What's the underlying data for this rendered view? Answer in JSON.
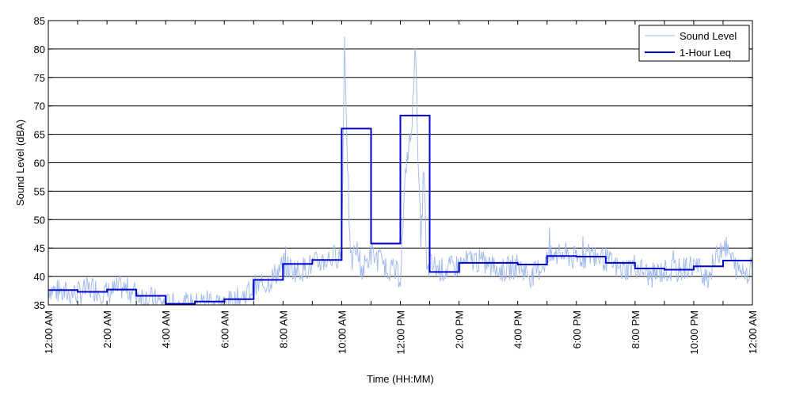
{
  "chart_data": {
    "type": "line",
    "title": "",
    "xlabel": "Time (HH:MM)",
    "ylabel": "Sound Level (dBA)",
    "ylim": [
      35,
      85
    ],
    "xlim": [
      0,
      24
    ],
    "y_ticks": [
      35,
      40,
      45,
      50,
      55,
      60,
      65,
      70,
      75,
      80,
      85
    ],
    "x_ticks": [
      0,
      2,
      4,
      6,
      8,
      10,
      12,
      14,
      16,
      18,
      20,
      22,
      24
    ],
    "x_tick_labels": [
      "12:00 AM",
      "2:00 AM",
      "4:00 AM",
      "6:00 AM",
      "8:00 AM",
      "10:00 AM",
      "12:00 PM",
      "2:00 PM",
      "4:00 PM",
      "6:00 PM",
      "8:00 PM",
      "10:00 PM",
      "12:00 AM"
    ],
    "grid": "horizontal",
    "legend_position": "top-right",
    "colors": {
      "sound_level": "#9db8ee",
      "leq": "#0000cc"
    },
    "series": [
      {
        "name": "Sound Level",
        "x_hours": [
          0,
          0.5,
          1,
          1.5,
          2,
          2.5,
          3,
          3.5,
          4,
          4.5,
          5,
          5.5,
          6,
          6.5,
          7,
          7.5,
          8,
          8.5,
          9,
          9.5,
          10,
          10.1,
          10.2,
          10.3,
          10.5,
          10.7,
          11,
          11.5,
          12,
          12.2,
          12.4,
          12.5,
          12.6,
          12.7,
          12.8,
          12.9,
          13,
          13.5,
          14,
          14.5,
          15,
          15.5,
          16,
          16.5,
          17,
          17.5,
          18,
          18.5,
          19,
          19.5,
          20,
          20.5,
          21,
          21.5,
          22,
          22.5,
          23,
          23.5,
          24
        ],
        "values": [
          38,
          37,
          37,
          38,
          37,
          38,
          37,
          36,
          35,
          35,
          35,
          36,
          35,
          36,
          38,
          39,
          42,
          41,
          42,
          43,
          44,
          82,
          60,
          42,
          45,
          41,
          44,
          42,
          40,
          60,
          66,
          82,
          63,
          45,
          60,
          40,
          42,
          41,
          42,
          43,
          42,
          41,
          42,
          40,
          43,
          44,
          43,
          44,
          43,
          41,
          42,
          40,
          41,
          41,
          42,
          40,
          46,
          41,
          41
        ]
      },
      {
        "name": "1-Hour Leq",
        "hour_values": [
          37.6,
          37.3,
          37.7,
          36.6,
          35.2,
          35.6,
          36.0,
          39.4,
          42.2,
          42.9,
          66.0,
          45.8,
          68.3,
          40.8,
          42.4,
          42.4,
          42.1,
          43.6,
          43.5,
          42.4,
          41.4,
          41.2,
          41.8,
          42.8
        ]
      }
    ]
  }
}
